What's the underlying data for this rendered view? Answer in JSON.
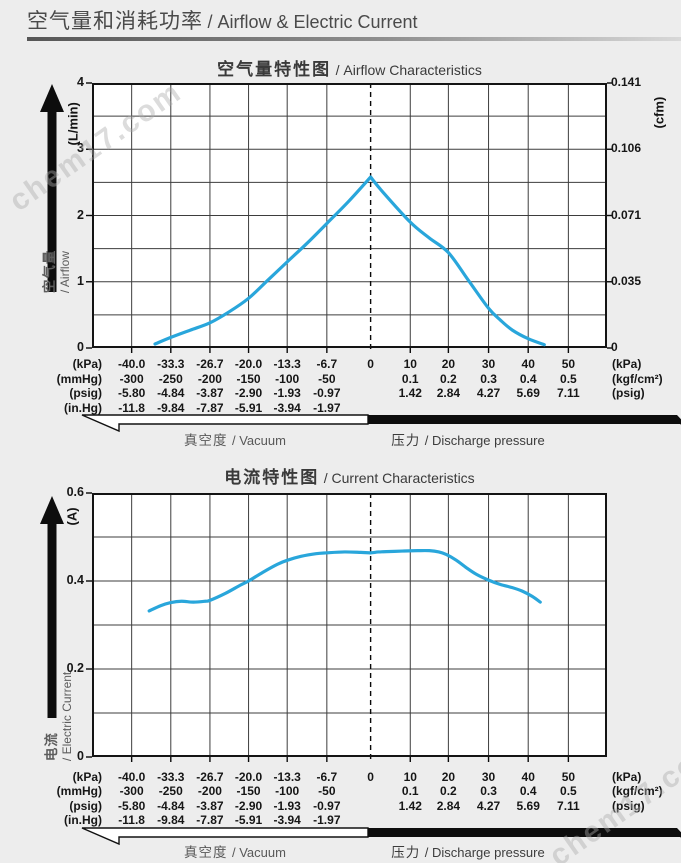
{
  "page": {
    "title_zh": "空气量和消耗功率",
    "title_en": "/ Airflow & Electric Current",
    "watermark": "chem17.com"
  },
  "x_axis": {
    "tick_values": [
      -40,
      -33.3,
      -26.7,
      -20,
      -13.3,
      -6.7,
      0,
      10,
      20,
      30,
      40,
      50
    ],
    "row_kpa": [
      "-40.0",
      "-33.3",
      "-26.7",
      "-20.0",
      "-13.3",
      "-6.7",
      "0",
      "10",
      "20",
      "30",
      "40",
      "50"
    ],
    "row_mmhg": [
      "-300",
      "-250",
      "-200",
      "-150",
      "-100",
      "-50"
    ],
    "row_kgf": [
      "0.1",
      "0.2",
      "0.3",
      "0.4",
      "0.5"
    ],
    "row_psig_vacuum": [
      "-5.80",
      "-4.84",
      "-3.87",
      "-2.90",
      "-1.93",
      "-0.97"
    ],
    "row_psig_pressure": [
      "1.42",
      "2.84",
      "4.27",
      "5.69",
      "7.11"
    ],
    "row_inhg": [
      "-11.8",
      "-9.84",
      "-7.87",
      "-5.91",
      "-3.94",
      "-1.97"
    ],
    "units_left": [
      "(kPa)",
      "(mmHg)",
      "(psig)",
      "(in.Hg)"
    ],
    "units_right": [
      "(kPa)",
      "(kgf/cm²)",
      "(psig)"
    ],
    "vacuum_zh": "真空度",
    "vacuum_en": "/ Vacuum",
    "pressure_zh": "压力",
    "pressure_en": "/ Discharge pressure"
  },
  "chart_data": [
    {
      "type": "line",
      "title_zh": "空气量特性图",
      "title_en": "/ Airflow Characteristics",
      "y_axis_name_zh": "空气量",
      "y_axis_name_en": "/ Airflow",
      "y_unit": "(L/min)",
      "right_axis_unit": "(cfm)",
      "x_unit": "kPa",
      "ylim": [
        0,
        4
      ],
      "grid_step": 0.5,
      "y_ticks": [
        {
          "v": 0,
          "l": "0",
          "r": "0"
        },
        {
          "v": 1,
          "l": "1",
          "r": "0.035"
        },
        {
          "v": 2,
          "l": "2",
          "r": "0.071"
        },
        {
          "v": 3,
          "l": "3",
          "r": "0.106"
        },
        {
          "v": 4,
          "l": "4",
          "r": "0.141"
        }
      ],
      "dashed_x": 0,
      "series": [
        {
          "name": "airflow",
          "color": "#29A6DB",
          "sharp_peak": true,
          "points": [
            [
              -36,
              0.06
            ],
            [
              -33.3,
              0.16
            ],
            [
              -30,
              0.27
            ],
            [
              -26.7,
              0.38
            ],
            [
              -23.3,
              0.55
            ],
            [
              -20,
              0.75
            ],
            [
              -16.7,
              1.02
            ],
            [
              -13.3,
              1.3
            ],
            [
              -10,
              1.58
            ],
            [
              -6.7,
              1.88
            ],
            [
              -3.3,
              2.22
            ],
            [
              0,
              2.58
            ],
            [
              3,
              2.36
            ],
            [
              10,
              1.9
            ],
            [
              15,
              1.66
            ],
            [
              20,
              1.44
            ],
            [
              25,
              1.02
            ],
            [
              30,
              0.6
            ],
            [
              33,
              0.42
            ],
            [
              36,
              0.27
            ],
            [
              40,
              0.14
            ],
            [
              44,
              0.05
            ]
          ]
        }
      ]
    },
    {
      "type": "line",
      "title_zh": "电流特性图",
      "title_en": "/ Current Characteristics",
      "y_axis_name_zh": "电流",
      "y_axis_name_en": "/ Electric Current",
      "y_unit": "(A)",
      "x_unit": "kPa",
      "ylim": [
        0,
        0.6
      ],
      "grid_step": 0.1,
      "y_ticks": [
        {
          "v": 0,
          "l": "0"
        },
        {
          "v": 0.2,
          "l": "0.2"
        },
        {
          "v": 0.4,
          "l": "0.4"
        },
        {
          "v": 0.6,
          "l": "0.6"
        }
      ],
      "dashed_x": 0,
      "series": [
        {
          "name": "electric-current",
          "color": "#29A6DB",
          "sharp_peak": false,
          "points": [
            [
              -37,
              0.332
            ],
            [
              -35,
              0.344
            ],
            [
              -33.3,
              0.351
            ],
            [
              -31.5,
              0.354
            ],
            [
              -29.5,
              0.352
            ],
            [
              -27.5,
              0.354
            ],
            [
              -26.7,
              0.356
            ],
            [
              -24,
              0.372
            ],
            [
              -21.5,
              0.39
            ],
            [
              -20,
              0.4
            ],
            [
              -17.5,
              0.42
            ],
            [
              -15,
              0.438
            ],
            [
              -13.3,
              0.447
            ],
            [
              -11,
              0.456
            ],
            [
              -8.5,
              0.462
            ],
            [
              -6.7,
              0.464
            ],
            [
              -4,
              0.466
            ],
            [
              -1.5,
              0.465
            ],
            [
              0,
              0.464
            ],
            [
              2,
              0.466
            ],
            [
              5,
              0.467
            ],
            [
              8,
              0.468
            ],
            [
              12,
              0.469
            ],
            [
              15,
              0.469
            ],
            [
              17.5,
              0.466
            ],
            [
              19.5,
              0.46
            ],
            [
              22,
              0.447
            ],
            [
              24.5,
              0.43
            ],
            [
              27,
              0.415
            ],
            [
              30,
              0.402
            ],
            [
              33,
              0.392
            ],
            [
              36,
              0.385
            ],
            [
              38.5,
              0.377
            ],
            [
              41,
              0.365
            ],
            [
              43,
              0.352
            ]
          ]
        }
      ]
    }
  ]
}
